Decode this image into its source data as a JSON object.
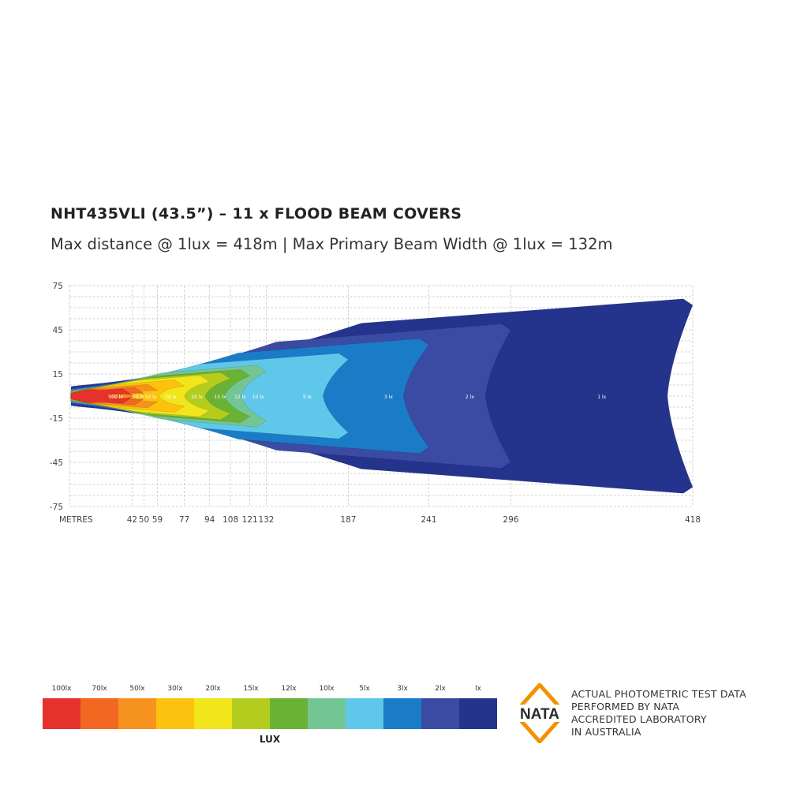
{
  "header": {
    "title": "NHT435VLI (43.5”) – 11 x FLOOD BEAM COVERS",
    "subtitle": "Max distance @ 1lux = 418m  |  Max Primary  Beam Width @ 1lux = 132m"
  },
  "chart_data": {
    "type": "heatmap",
    "title": "NHT435VLI (43.5”) – 11 x FLOOD BEAM COVERS",
    "subtitle": "Max distance @ 1lux = 418m  |  Max Primary  Beam Width @ 1lux = 132m",
    "xlabel": "METRES",
    "x_ticks": [
      42,
      50,
      59,
      77,
      94,
      108,
      121,
      132,
      187,
      241,
      296,
      418
    ],
    "y_ticks": [
      75,
      45,
      15,
      -15,
      -45,
      -75
    ],
    "xlim": [
      0,
      418
    ],
    "ylim": [
      -75,
      75
    ],
    "grid": true,
    "contours": [
      {
        "level": "1lx",
        "label": "1 lx",
        "color": "#24348d",
        "reach": 418,
        "half_width": 66
      },
      {
        "level": "2lx",
        "label": "2 lx",
        "color": "#3b4aa3",
        "reach": 296,
        "half_width": 49
      },
      {
        "level": "3lx",
        "label": "3 lx",
        "color": "#1a7cc7",
        "reach": 241,
        "half_width": 39
      },
      {
        "level": "5lx",
        "label": "5 lx",
        "color": "#5fc8ea",
        "reach": 187,
        "half_width": 29
      },
      {
        "level": "10lx",
        "label": "10 lx",
        "color": "#74c594",
        "reach": 132,
        "half_width": 21
      },
      {
        "level": "12lx",
        "label": "12 lx",
        "color": "#6ab234",
        "reach": 121,
        "half_width": 18
      },
      {
        "level": "15lx",
        "label": "15 lx",
        "color": "#b4cd1d",
        "reach": 108,
        "half_width": 16
      },
      {
        "level": "20lx",
        "label": "20 lx",
        "color": "#f1e61c",
        "reach": 94,
        "half_width": 14
      },
      {
        "level": "30lx",
        "label": "30 lx",
        "color": "#fcc20d",
        "reach": 77,
        "half_width": 11
      },
      {
        "level": "50lx",
        "label": "50 lx",
        "color": "#f6921e",
        "reach": 59,
        "half_width": 8
      },
      {
        "level": "70lx",
        "label": "70 lx",
        "color": "#f26722",
        "reach": 50,
        "half_width": 6
      },
      {
        "level": "100lx",
        "label": "100 lx",
        "color": "#e5322c",
        "reach": 42,
        "half_width": 5
      }
    ]
  },
  "legend": {
    "unit": "LUX",
    "items": [
      {
        "label": "100lx",
        "color": "#e5322c"
      },
      {
        "label": "70lx",
        "color": "#f26722"
      },
      {
        "label": "50lx",
        "color": "#f6921e"
      },
      {
        "label": "30lx",
        "color": "#fcc20d"
      },
      {
        "label": "20lx",
        "color": "#f1e61c"
      },
      {
        "label": "15lx",
        "color": "#b4cd1d"
      },
      {
        "label": "12lx",
        "color": "#6ab234"
      },
      {
        "label": "10lx",
        "color": "#74c594"
      },
      {
        "label": "5lx",
        "color": "#5fc8ea"
      },
      {
        "label": "3lx",
        "color": "#1a7cc7"
      },
      {
        "label": "2lx",
        "color": "#3b4aa3"
      },
      {
        "label": "lx",
        "color": "#24348d"
      }
    ]
  },
  "nata": {
    "logo_text": "NATA",
    "logo_color": "#f39200",
    "lines": [
      "ACTUAL PHOTOMETRIC TEST DATA",
      "PERFORMED BY NATA",
      "ACCREDITED LABORATORY",
      "IN AUSTRALIA"
    ]
  }
}
